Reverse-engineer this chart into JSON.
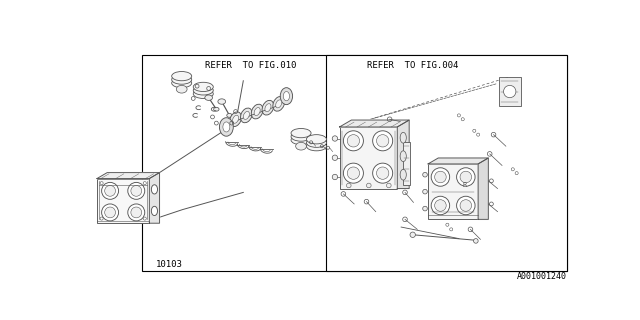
{
  "bg_color": "#ffffff",
  "border_color": "#000000",
  "line_color": "#555555",
  "text_color": "#000000",
  "fig_width": 6.4,
  "fig_height": 3.2,
  "dpi": 100,
  "part_number": "A001001240",
  "part_label": "10103",
  "refer_fig010": "REFER  TO FIG.010",
  "refer_fig004": "REFER  TO FIG.004"
}
